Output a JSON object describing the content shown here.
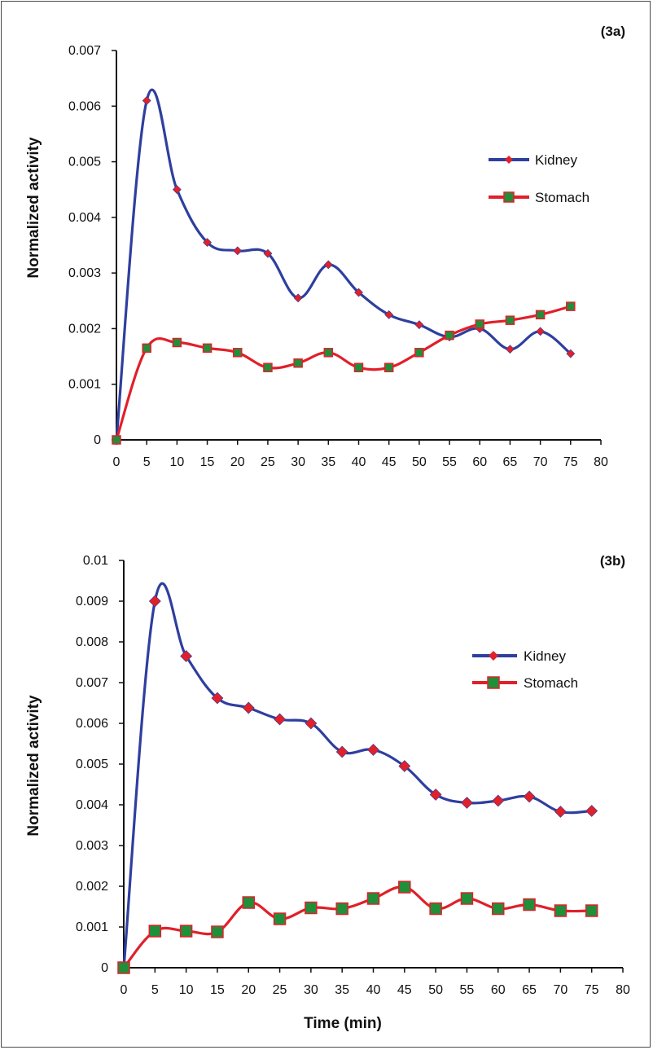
{
  "chart_data": [
    {
      "type": "line",
      "title": "(3a)",
      "xlabel": "",
      "ylabel": "Normalized activity",
      "xlim": [
        0,
        80
      ],
      "ylim": [
        0,
        0.007
      ],
      "xticks": [
        "0",
        "5",
        "10",
        "15",
        "20",
        "25",
        "30",
        "35",
        "40",
        "45",
        "50",
        "55",
        "60",
        "65",
        "70",
        "75",
        "80"
      ],
      "yticks": [
        "0",
        "0.001",
        "0.002",
        "0.003",
        "0.004",
        "0.005",
        "0.006",
        "0.007"
      ],
      "legend_position": "right",
      "series": [
        {
          "name": "Kidney",
          "color": "#2e3f9e",
          "marker_color": "#e0202a",
          "marker": "diamond",
          "x": [
            0,
            5,
            10,
            15,
            20,
            25,
            30,
            35,
            40,
            45,
            50,
            55,
            60,
            65,
            70,
            75
          ],
          "values": [
            0,
            0.0061,
            0.0045,
            0.00355,
            0.0034,
            0.00335,
            0.00255,
            0.00315,
            0.00265,
            0.00225,
            0.00207,
            0.00185,
            0.002,
            0.00163,
            0.00195,
            0.00155
          ]
        },
        {
          "name": "Stomach",
          "color": "#e0202a",
          "marker_color": "#1f8f3a",
          "marker": "square",
          "x": [
            0,
            5,
            10,
            15,
            20,
            25,
            30,
            35,
            40,
            45,
            50,
            55,
            60,
            65,
            70,
            75
          ],
          "values": [
            0,
            0.00165,
            0.00175,
            0.00165,
            0.00157,
            0.0013,
            0.00138,
            0.00157,
            0.0013,
            0.0013,
            0.00157,
            0.00188,
            0.00208,
            0.00215,
            0.00225,
            0.0024
          ]
        }
      ]
    },
    {
      "type": "line",
      "title": "(3b)",
      "xlabel": "Time (min)",
      "ylabel": "Normalized activity",
      "xlim": [
        0,
        80
      ],
      "ylim": [
        0,
        0.01
      ],
      "xticks": [
        "0",
        "5",
        "10",
        "15",
        "20",
        "25",
        "30",
        "35",
        "40",
        "45",
        "50",
        "55",
        "60",
        "65",
        "70",
        "75",
        "80"
      ],
      "yticks": [
        "0",
        "0.001",
        "0.002",
        "0.003",
        "0.004",
        "0.005",
        "0.006",
        "0.007",
        "0.008",
        "0.009",
        "0.01"
      ],
      "legend_position": "right",
      "series": [
        {
          "name": "Kidney",
          "color": "#2e3f9e",
          "marker_color": "#e0202a",
          "marker": "diamond",
          "x": [
            0,
            5,
            10,
            15,
            20,
            25,
            30,
            35,
            40,
            45,
            50,
            55,
            60,
            65,
            70,
            75
          ],
          "values": [
            0,
            0.009,
            0.00765,
            0.00662,
            0.00638,
            0.0061,
            0.006,
            0.0053,
            0.00535,
            0.00495,
            0.00425,
            0.00405,
            0.0041,
            0.0042,
            0.00383,
            0.00385
          ]
        },
        {
          "name": "Stomach",
          "color": "#e0202a",
          "marker_color": "#1f8f3a",
          "marker": "square",
          "x": [
            0,
            5,
            10,
            15,
            20,
            25,
            30,
            35,
            40,
            45,
            50,
            55,
            60,
            65,
            70,
            75
          ],
          "values": [
            0,
            0.0009,
            0.0009,
            0.00088,
            0.0016,
            0.0012,
            0.00147,
            0.00145,
            0.0017,
            0.00198,
            0.00145,
            0.0017,
            0.00145,
            0.00155,
            0.0014,
            0.0014
          ]
        }
      ]
    }
  ]
}
